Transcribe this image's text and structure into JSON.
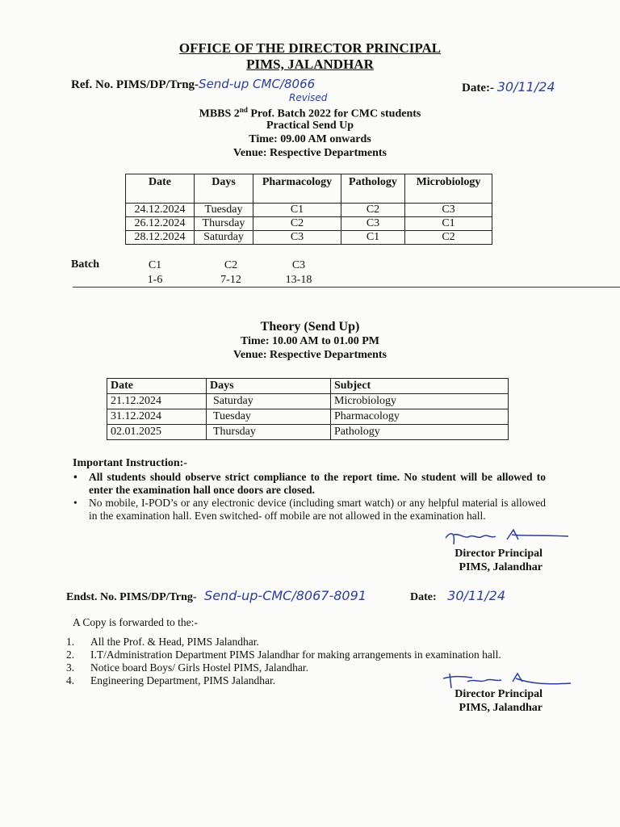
{
  "header": {
    "title": "OFFICE OF THE DIRECTOR PRINCIPAL",
    "subtitle": "PIMS, JALANDHAR",
    "ref_label": "Ref. No. PIMS/DP/Trng-",
    "ref_handwritten": "Send-up CMC/8066",
    "ref_revised": "Revised",
    "date_label": "Date:-",
    "date_handwritten": "30/11/24"
  },
  "practical": {
    "line1": "MBBS 2",
    "line1_sup": "nd",
    "line1_rest": " Prof. Batch 2022 for CMC students",
    "line2": "Practical Send Up",
    "line3": "Time: 09.00 AM onwards",
    "line4": "Venue: Respective Departments",
    "columns": [
      "Date",
      "Days",
      "Pharmacology",
      "Pathology",
      "Microbiology"
    ],
    "rows": [
      [
        "24.12.2024",
        "Tuesday",
        "C1",
        "C2",
        "C3"
      ],
      [
        "26.12.2024",
        "Thursday",
        "C2",
        "C3",
        "C1"
      ],
      [
        "28.12.2024",
        "Saturday",
        "C3",
        "C1",
        "C2"
      ]
    ]
  },
  "batch": {
    "label": "Batch",
    "groups": [
      {
        "name": "C1",
        "range": "1-6"
      },
      {
        "name": "C2",
        "range": "7-12"
      },
      {
        "name": "C3",
        "range": "13-18"
      }
    ]
  },
  "theory": {
    "title": "Theory (Send Up)",
    "time": "Time: 10.00 AM to 01.00 PM",
    "venue": "Venue: Respective Departments",
    "columns": [
      "Date",
      "Days",
      "Subject"
    ],
    "rows": [
      [
        "21.12.2024",
        "Saturday",
        "Microbiology"
      ],
      [
        "31.12.2024",
        "Tuesday",
        "Pharmacology"
      ],
      [
        "02.01.2025",
        "Thursday",
        "Pathology"
      ]
    ]
  },
  "instructions": {
    "heading": "Important Instruction:-",
    "items": [
      "All students should observe strict compliance to the report time. No student will be allowed to enter the examination hall once doors are closed.",
      "No mobile, I-POD’s or any electronic device (including smart watch) or any helpful material is allowed in the examination hall. Even switched- off mobile are not allowed in the examination hall."
    ]
  },
  "signature": {
    "title": "Director Principal",
    "org": "PIMS, Jalandhar"
  },
  "endorsement": {
    "label": "Endst. No. PIMS/DP/Trng-",
    "handwritten": "Send-up-CMC/8067-8091",
    "date_label": "Date:",
    "date_handwritten": "30/11/24",
    "copy_line": "A Copy is forwarded to the:-",
    "recipients": [
      {
        "num": "1.",
        "text": "All the Prof. & Head, PIMS Jalandhar."
      },
      {
        "num": "2.",
        "text": "I.T/Administration Department PIMS Jalandhar for making arrangements in examination hall."
      },
      {
        "num": "3.",
        "text": "Notice board Boys/ Girls Hostel PIMS, Jalandhar."
      },
      {
        "num": "4.",
        "text": "Engineering Department, PIMS Jalandhar."
      }
    ]
  }
}
